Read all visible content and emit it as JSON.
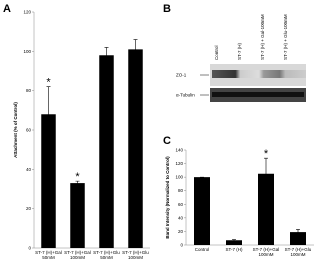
{
  "chart_data": [
    {
      "type": "bar",
      "panel": "A",
      "y_label": "Attachment (% of Control)",
      "categories": [
        "ST-7 (H)+Gal 50mM",
        "ST-7 (H)+Gal 100mM",
        "ST-7 (H)+Glu 50mM",
        "ST-7 (H)+Glu 100mM"
      ],
      "values": [
        68,
        33,
        98,
        101
      ],
      "errors": [
        14,
        1,
        4,
        5
      ],
      "markers": [
        "*",
        "*",
        null,
        null
      ],
      "color": "#000000",
      "ylim": [
        0,
        120
      ],
      "yticks": [
        0,
        20,
        40,
        60,
        80,
        100,
        120
      ]
    },
    {
      "type": "bar",
      "panel": "C",
      "y_label": "Band Intensity (Normalized to Control)",
      "categories": [
        "Control",
        "ST-7 (H)",
        "ST-7 (H)+Gal 100mM",
        "ST-7 (H)+Glu 100mM"
      ],
      "values": [
        100,
        7,
        105,
        19
      ],
      "errors": [
        0,
        1,
        23,
        4
      ],
      "markers": [
        null,
        null,
        "*",
        null
      ],
      "color": "#000000",
      "ylim": [
        0,
        140
      ],
      "yticks": [
        0,
        20,
        40,
        60,
        80,
        100,
        120,
        140
      ]
    }
  ],
  "blot": {
    "panel": "B",
    "lanes": [
      "Control",
      "ST-7 (H)",
      "ST-7 (H) + Gal-100mM",
      "ST-7 (H) + Glu-100mM"
    ],
    "rows": [
      "ZO-1",
      "α-Tubulin"
    ]
  }
}
